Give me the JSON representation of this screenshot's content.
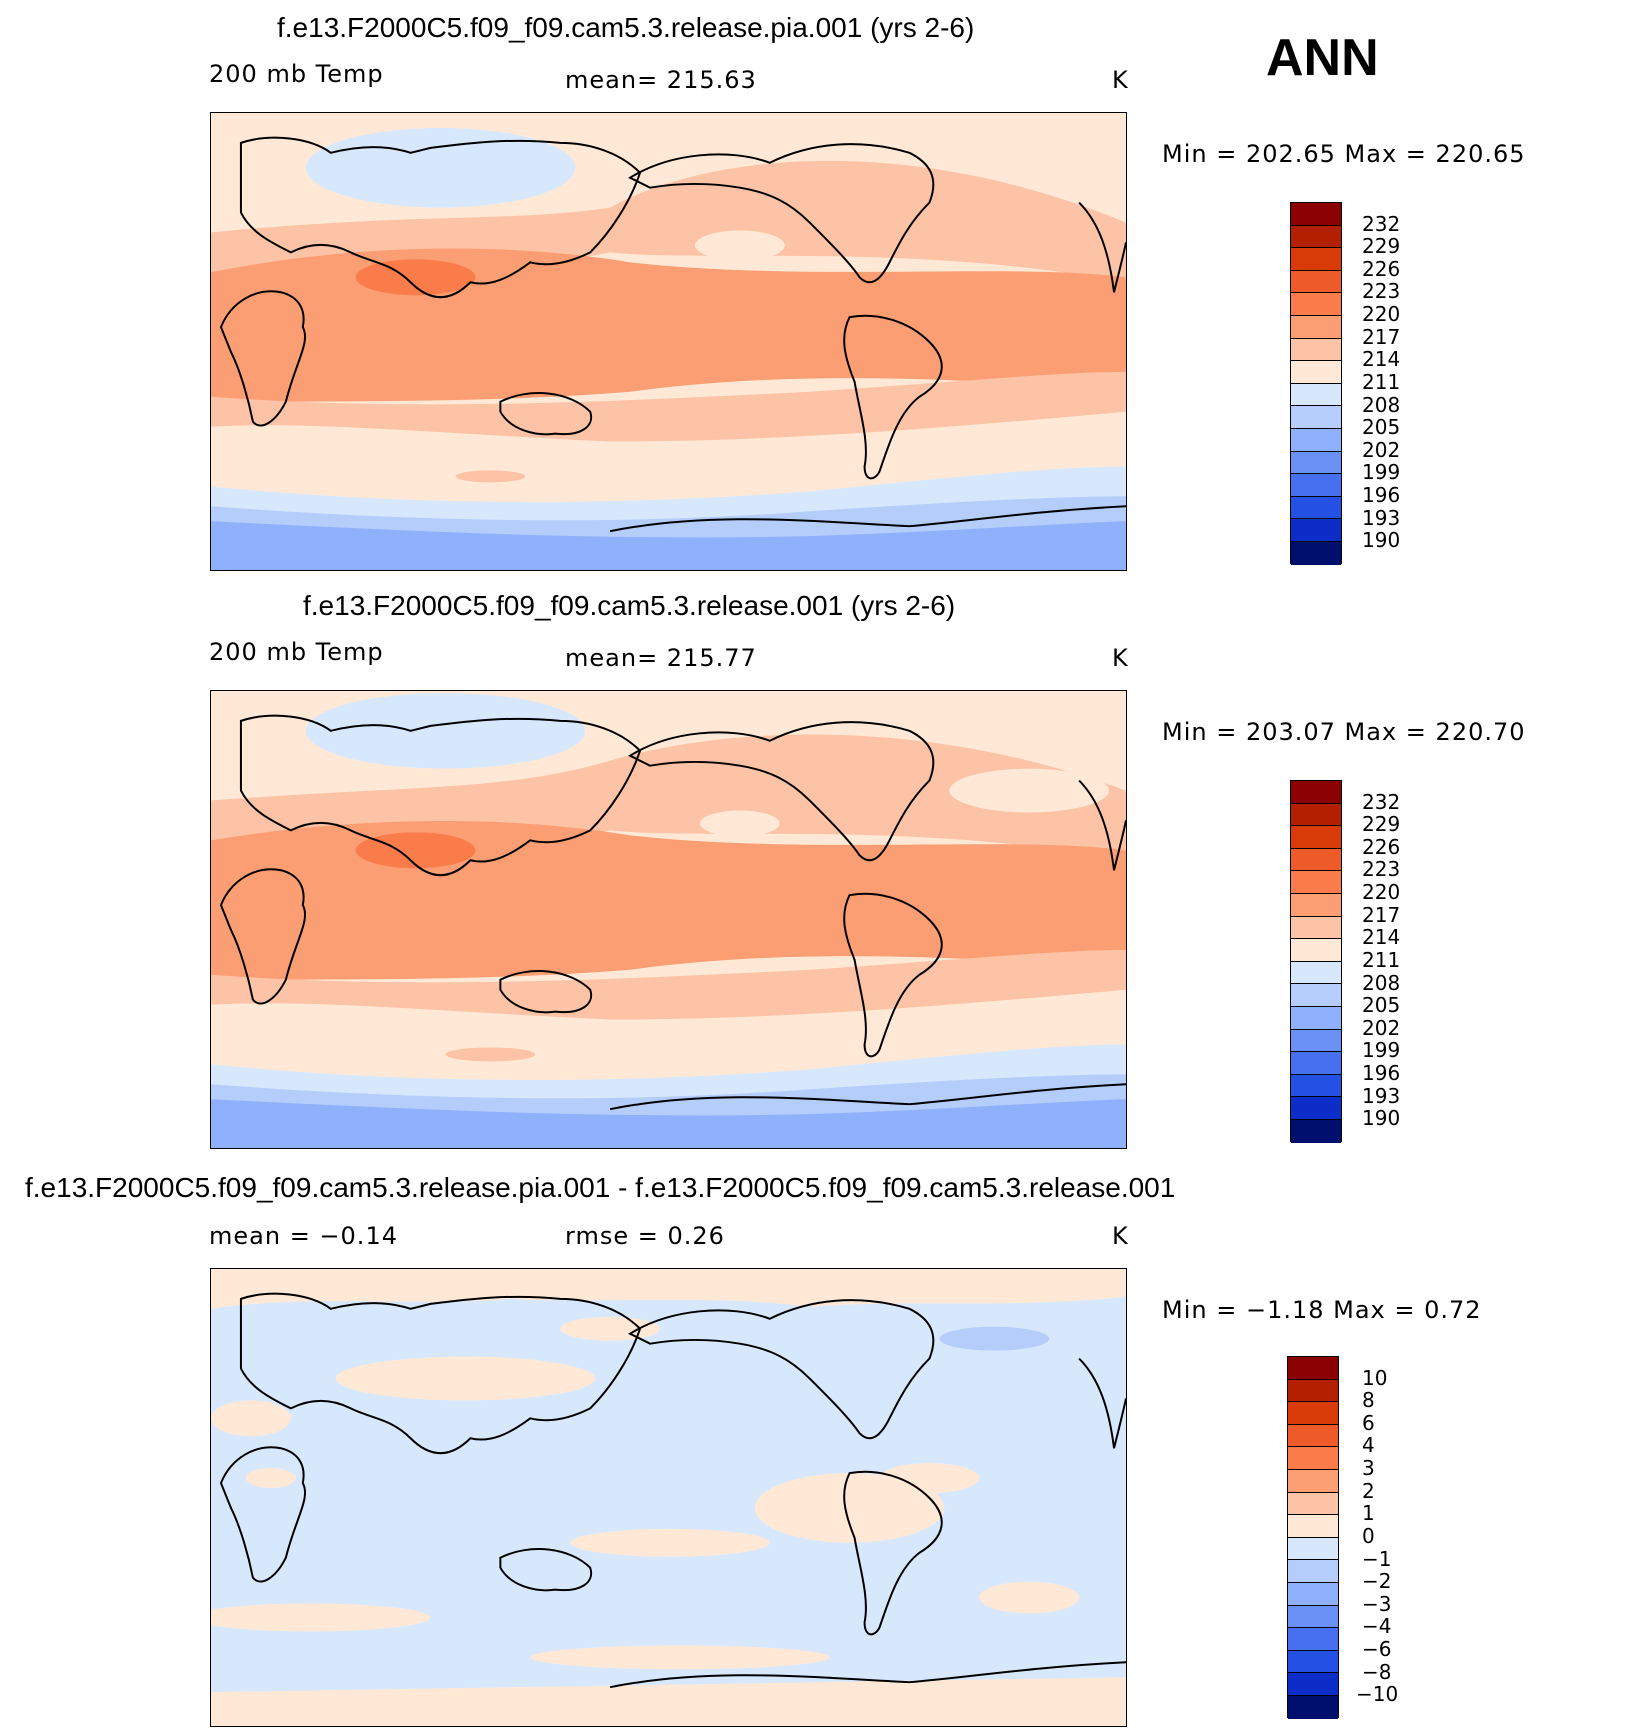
{
  "season": "ANN",
  "colors": {
    "warm_scale": [
      "#8b0000",
      "#b22000",
      "#d83a08",
      "#ef5a2a",
      "#f97c4a",
      "#fb9e73",
      "#fcc3a6",
      "#ffe9d6",
      "#d7e8fd",
      "#b4cdfb",
      "#8fb0fa",
      "#6a90f6",
      "#4670ef",
      "#2550e4",
      "#0c2dc8",
      "#041a9a",
      "#000e6e"
    ],
    "map_outline": "#000000"
  },
  "panels": [
    {
      "title": "f.e13.F2000C5.f09_f09.cam5.3.release.pia.001 (yrs 2-6)",
      "left_label": "200 mb Temp",
      "mean_label": "mean=  215.63",
      "units": "K",
      "minmax": "Min  =  202.65  Max  =  220.65",
      "ticks": [
        "232",
        "229",
        "226",
        "223",
        "220",
        "217",
        "214",
        "211",
        "208",
        "205",
        "202",
        "199",
        "196",
        "193",
        "190"
      ]
    },
    {
      "title": "f.e13.F2000C5.f09_f09.cam5.3.release.001 (yrs 2-6)",
      "left_label": "200 mb Temp",
      "mean_label": "mean=  215.77",
      "units": "K",
      "minmax": "Min  =  203.07  Max  =  220.70",
      "ticks": [
        "232",
        "229",
        "226",
        "223",
        "220",
        "217",
        "214",
        "211",
        "208",
        "205",
        "202",
        "199",
        "196",
        "193",
        "190"
      ]
    },
    {
      "title": "f.e13.F2000C5.f09_f09.cam5.3.release.pia.001 - f.e13.F2000C5.f09_f09.cam5.3.release.001",
      "left_label": "mean  =    −0.14",
      "mean_label": "rmse  =     0.26",
      "units": "K",
      "minmax": "Min  =    −1.18  Max  =     0.72",
      "ticks": [
        "10",
        "8",
        "6",
        "4",
        "3",
        "2",
        "1",
        "0",
        "−1",
        "−2",
        "−3",
        "−4",
        "−6",
        "−8",
        "−10"
      ]
    }
  ]
}
